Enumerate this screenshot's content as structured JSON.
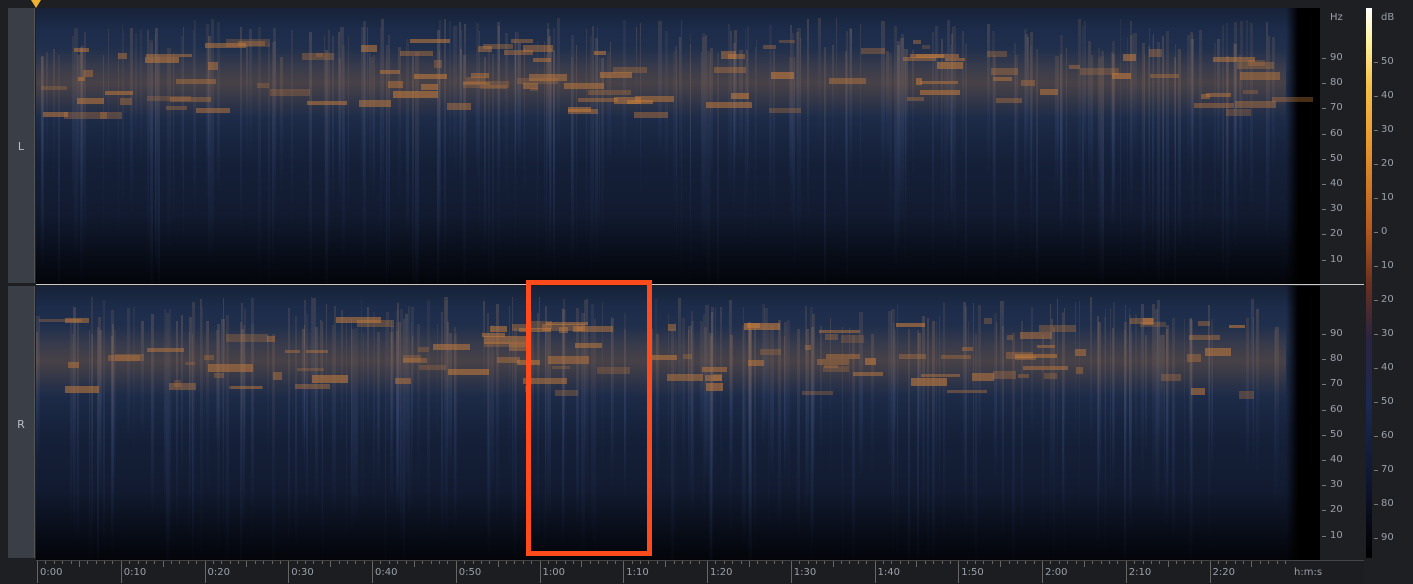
{
  "channels": [
    {
      "label": "L",
      "hz_ticks": [
        "90",
        "80",
        "70",
        "60",
        "50",
        "40",
        "30",
        "20",
        "10"
      ]
    },
    {
      "label": "R",
      "hz_ticks": [
        "90",
        "80",
        "70",
        "60",
        "50",
        "40",
        "30",
        "20",
        "10"
      ]
    }
  ],
  "hz_unit": "Hz",
  "db_scale": {
    "unit": "dB",
    "ticks": [
      "50",
      "40",
      "30",
      "20",
      "10",
      "0",
      "10",
      "20",
      "30",
      "40",
      "50",
      "60",
      "70",
      "80",
      "90"
    ]
  },
  "time_axis": {
    "ticks": [
      "0:00",
      "0:10",
      "0:20",
      "0:30",
      "0:40",
      "0:50",
      "1:00",
      "1:10",
      "1:20",
      "1:30",
      "1:40",
      "1:50",
      "2:00",
      "2:10",
      "2:20"
    ],
    "unit": "h:m:s"
  }
}
